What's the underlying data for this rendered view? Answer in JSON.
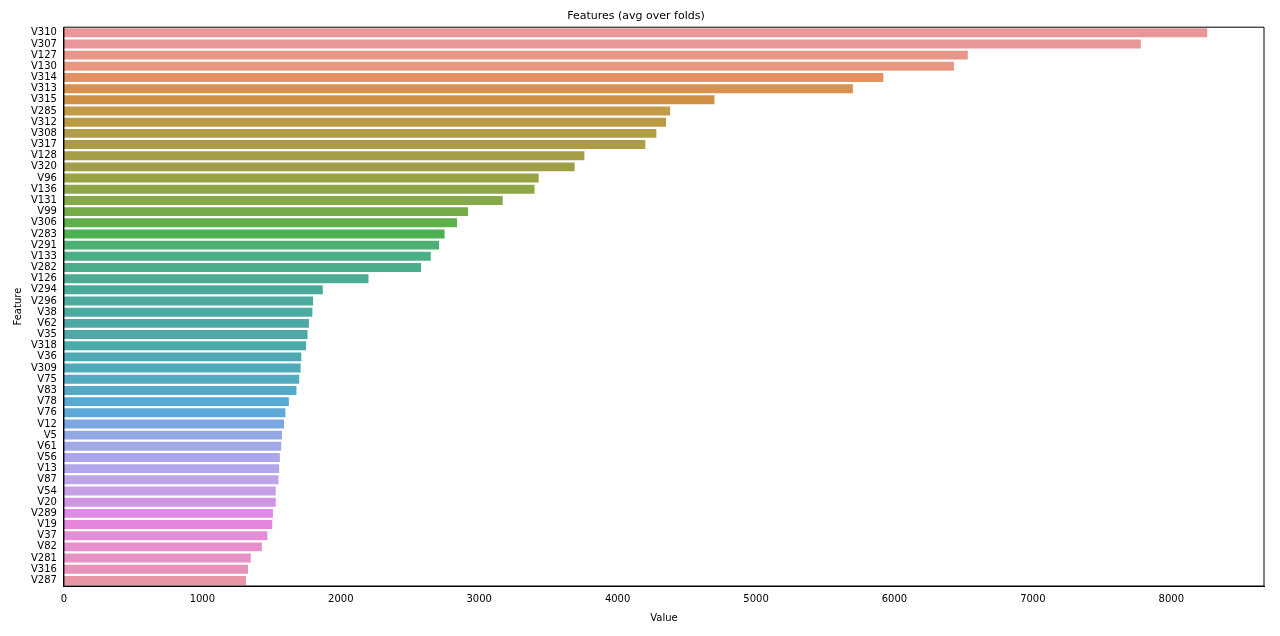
{
  "chart_data": {
    "type": "bar",
    "orientation": "horizontal",
    "title": "Features (avg over folds)",
    "xlabel": "Value",
    "ylabel": "Feature",
    "categories": [
      "V310",
      "V307",
      "V127",
      "V130",
      "V314",
      "V313",
      "V315",
      "V285",
      "V312",
      "V308",
      "V317",
      "V128",
      "V320",
      "V96",
      "V136",
      "V131",
      "V99",
      "V306",
      "V283",
      "V291",
      "V133",
      "V282",
      "V126",
      "V294",
      "V296",
      "V38",
      "V62",
      "V35",
      "V318",
      "V36",
      "V309",
      "V75",
      "V83",
      "V78",
      "V76",
      "V12",
      "V5",
      "V61",
      "V56",
      "V13",
      "V87",
      "V54",
      "V20",
      "V289",
      "V19",
      "V37",
      "V82",
      "V281",
      "V316",
      "V287"
    ],
    "values": [
      8260,
      7780,
      6530,
      6430,
      5920,
      5700,
      4700,
      4380,
      4350,
      4280,
      4200,
      3760,
      3690,
      3430,
      3400,
      3170,
      2920,
      2840,
      2750,
      2710,
      2650,
      2580,
      2200,
      1870,
      1800,
      1795,
      1770,
      1760,
      1750,
      1715,
      1710,
      1700,
      1680,
      1625,
      1600,
      1590,
      1575,
      1570,
      1560,
      1555,
      1550,
      1530,
      1530,
      1510,
      1505,
      1470,
      1430,
      1350,
      1330,
      1315
    ],
    "colors": [
      "#e9969b",
      "#e9969a",
      "#e8968a",
      "#e8967f",
      "#e49161",
      "#d9914f",
      "#cf9046",
      "#c39a47",
      "#ba9a42",
      "#b39c47",
      "#ac9c48",
      "#a59e47",
      "#a09f47",
      "#99a346",
      "#8fa646",
      "#84a946",
      "#74ad47",
      "#5eb04a",
      "#4cb050",
      "#4caf73",
      "#4cae85",
      "#4cad8c",
      "#4cac93",
      "#4cab98",
      "#4caa9c",
      "#4caaa0",
      "#4ca9a4",
      "#4ca9a8",
      "#4ca9ac",
      "#4ea9b3",
      "#4fa9b8",
      "#52a9c0",
      "#55a9c8",
      "#58a9d0",
      "#5ea9da",
      "#7aa6e2",
      "#92a8e6",
      "#a0a8e8",
      "#aba6ea",
      "#b3a5ea",
      "#bea4e8",
      "#c6a0e6",
      "#d293e6",
      "#df8ae4",
      "#e685dc",
      "#e68bd6",
      "#e68fcc",
      "#e692c4",
      "#e693ba",
      "#e895a6"
    ],
    "xlim": [
      0,
      8670
    ],
    "xticks": [
      0,
      1000,
      2000,
      3000,
      4000,
      5000,
      6000,
      7000,
      8000
    ],
    "grid": false,
    "legend": false
  }
}
